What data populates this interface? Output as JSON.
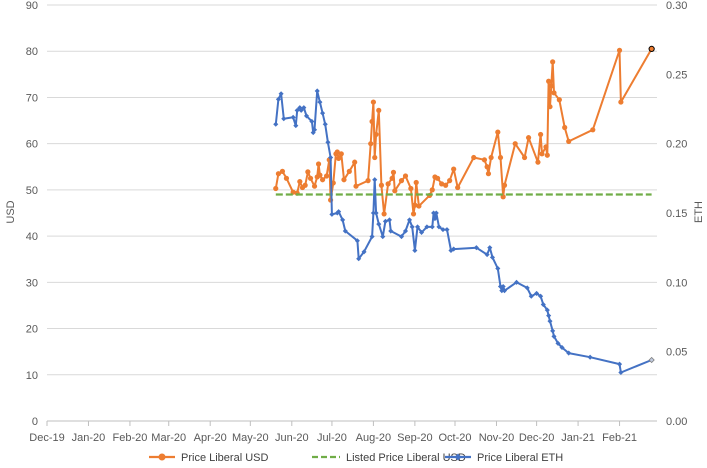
{
  "chart_data": {
    "type": "line",
    "title": "",
    "ylabel": "USD",
    "y2label": "ETH",
    "ylim": [
      0,
      90
    ],
    "y2lim": [
      0,
      0.3
    ],
    "yticks": [
      0,
      10,
      20,
      30,
      40,
      50,
      60,
      70,
      80,
      90
    ],
    "y2ticks": [
      0,
      0.05,
      0.1,
      0.15,
      0.2,
      0.25,
      0.3
    ],
    "y2tick_labels": [
      "0.00",
      "0.05",
      "0.10",
      "0.15",
      "0.20",
      "0.25",
      "0.30"
    ],
    "xlim": [
      "2019-12-01",
      "2021-03-01"
    ],
    "xticks": [
      "2019-12-01",
      "2020-01-01",
      "2020-02-01",
      "2020-03-01",
      "2020-04-01",
      "2020-05-01",
      "2020-06-01",
      "2020-07-01",
      "2020-08-01",
      "2020-09-01",
      "2020-10-01",
      "2020-11-01",
      "2020-12-01",
      "2021-01-01",
      "2021-02-01"
    ],
    "xtick_labels": [
      "Dec-19",
      "Jan-20",
      "Feb-20",
      "Mar-20",
      "Apr-20",
      "May-20",
      "Jun-20",
      "Jul-20",
      "Aug-20",
      "Sep-20",
      "Oct-20",
      "Nov-20",
      "Dec-20",
      "Jan-21",
      "Feb-21"
    ],
    "grid": true,
    "legend": "bottom",
    "series": [
      {
        "name": "Price Liberal USD",
        "axis": "left",
        "color": "#ed7d31",
        "marker": "circle",
        "points": [
          [
            "2020-05-20",
            50.3
          ],
          [
            "2020-05-22",
            53.5
          ],
          [
            "2020-05-25",
            54.0
          ],
          [
            "2020-05-28",
            52.5
          ],
          [
            "2020-06-02",
            49.5
          ],
          [
            "2020-06-05",
            49.3
          ],
          [
            "2020-06-07",
            51.8
          ],
          [
            "2020-06-09",
            50.5
          ],
          [
            "2020-06-11",
            51.0
          ],
          [
            "2020-06-13",
            53.9
          ],
          [
            "2020-06-15",
            52.5
          ],
          [
            "2020-06-18",
            50.8
          ],
          [
            "2020-06-20",
            52.8
          ],
          [
            "2020-06-21",
            55.6
          ],
          [
            "2020-06-22",
            53.2
          ],
          [
            "2020-06-24",
            52.2
          ],
          [
            "2020-06-27",
            53.0
          ],
          [
            "2020-06-29",
            56.5
          ],
          [
            "2020-06-30",
            47.8
          ],
          [
            "2020-07-02",
            51.5
          ],
          [
            "2020-07-04",
            57.8
          ],
          [
            "2020-07-05",
            58.2
          ],
          [
            "2020-07-06",
            56.8
          ],
          [
            "2020-07-08",
            57.8
          ],
          [
            "2020-07-10",
            52.2
          ],
          [
            "2020-07-14",
            54.0
          ],
          [
            "2020-07-18",
            56.0
          ],
          [
            "2020-07-19",
            50.8
          ],
          [
            "2020-07-28",
            52.0
          ],
          [
            "2020-07-30",
            60.0
          ],
          [
            "2020-07-31",
            64.8
          ],
          [
            "2020-08-01",
            69.0
          ],
          [
            "2020-08-02",
            57.0
          ],
          [
            "2020-08-03",
            62.0
          ],
          [
            "2020-08-05",
            67.2
          ],
          [
            "2020-08-07",
            51.0
          ],
          [
            "2020-08-09",
            44.8
          ],
          [
            "2020-08-12",
            51.3
          ],
          [
            "2020-08-15",
            52.5
          ],
          [
            "2020-08-16",
            53.8
          ],
          [
            "2020-08-17",
            49.8
          ],
          [
            "2020-08-22",
            52.0
          ],
          [
            "2020-08-25",
            53.0
          ],
          [
            "2020-08-29",
            50.3
          ],
          [
            "2020-08-31",
            44.8
          ],
          [
            "2020-09-01",
            46.7
          ],
          [
            "2020-09-02",
            51.6
          ],
          [
            "2020-09-04",
            46.5
          ],
          [
            "2020-09-12",
            48.8
          ],
          [
            "2020-09-14",
            50.0
          ],
          [
            "2020-09-16",
            52.8
          ],
          [
            "2020-09-18",
            52.5
          ],
          [
            "2020-09-21",
            51.3
          ],
          [
            "2020-09-24",
            51.0
          ],
          [
            "2020-09-27",
            52.0
          ],
          [
            "2020-09-30",
            54.5
          ],
          [
            "2020-10-03",
            50.5
          ],
          [
            "2020-10-15",
            57.0
          ],
          [
            "2020-10-23",
            56.5
          ],
          [
            "2020-10-25",
            55.0
          ],
          [
            "2020-10-26",
            53.5
          ],
          [
            "2020-10-28",
            57.0
          ],
          [
            "2020-11-02",
            62.5
          ],
          [
            "2020-11-04",
            57.0
          ],
          [
            "2020-11-06",
            48.5
          ],
          [
            "2020-11-07",
            51.0
          ],
          [
            "2020-11-15",
            60.0
          ],
          [
            "2020-11-22",
            57.0
          ],
          [
            "2020-11-25",
            61.3
          ],
          [
            "2020-12-02",
            56.0
          ],
          [
            "2020-12-04",
            62.0
          ],
          [
            "2020-12-05",
            57.8
          ],
          [
            "2020-12-08",
            59.3
          ],
          [
            "2020-12-09",
            57.5
          ],
          [
            "2020-12-10",
            73.5
          ],
          [
            "2020-12-11",
            68.0
          ],
          [
            "2020-12-12",
            72.5
          ],
          [
            "2020-12-13",
            77.7
          ],
          [
            "2020-12-14",
            71.0
          ],
          [
            "2020-12-18",
            69.5
          ],
          [
            "2020-12-22",
            63.5
          ],
          [
            "2020-12-25",
            60.5
          ],
          [
            "2021-01-12",
            63.0
          ],
          [
            "2021-02-01",
            80.2
          ],
          [
            "2021-02-02",
            69.0
          ],
          [
            "2021-02-25",
            80.5
          ]
        ]
      },
      {
        "name": "Listed Price Liberal USD",
        "axis": "left",
        "color": "#70ad47",
        "marker": "none",
        "dashed": true,
        "points": [
          [
            "2020-05-20",
            49.0
          ],
          [
            "2021-02-25",
            49.0
          ]
        ]
      },
      {
        "name": "Price Liberal ETH",
        "axis": "right",
        "color": "#4472c4",
        "marker": "diamond",
        "points": [
          [
            "2020-05-20",
            0.214
          ],
          [
            "2020-05-22",
            0.232
          ],
          [
            "2020-05-24",
            0.236
          ],
          [
            "2020-05-26",
            0.218
          ],
          [
            "2020-06-02",
            0.219
          ],
          [
            "2020-06-04",
            0.213
          ],
          [
            "2020-06-05",
            0.224
          ],
          [
            "2020-06-07",
            0.226
          ],
          [
            "2020-06-08",
            0.224
          ],
          [
            "2020-06-10",
            0.226
          ],
          [
            "2020-06-12",
            0.22
          ],
          [
            "2020-06-16",
            0.216
          ],
          [
            "2020-06-17",
            0.208
          ],
          [
            "2020-06-18",
            0.21
          ],
          [
            "2020-06-20",
            0.238
          ],
          [
            "2020-06-22",
            0.23
          ],
          [
            "2020-06-24",
            0.222
          ],
          [
            "2020-06-26",
            0.214
          ],
          [
            "2020-06-28",
            0.201
          ],
          [
            "2020-06-30",
            0.19
          ],
          [
            "2020-07-01",
            0.149
          ],
          [
            "2020-07-05",
            0.15
          ],
          [
            "2020-07-06",
            0.151
          ],
          [
            "2020-07-09",
            0.145
          ],
          [
            "2020-07-11",
            0.137
          ],
          [
            "2020-07-20",
            0.13
          ],
          [
            "2020-07-21",
            0.117
          ],
          [
            "2020-07-25",
            0.122
          ],
          [
            "2020-07-31",
            0.133
          ],
          [
            "2020-08-01",
            0.15
          ],
          [
            "2020-08-02",
            0.174
          ],
          [
            "2020-08-03",
            0.15
          ],
          [
            "2020-08-05",
            0.142
          ],
          [
            "2020-08-08",
            0.133
          ],
          [
            "2020-08-10",
            0.144
          ],
          [
            "2020-08-13",
            0.145
          ],
          [
            "2020-08-14",
            0.137
          ],
          [
            "2020-08-22",
            0.133
          ],
          [
            "2020-08-25",
            0.137
          ],
          [
            "2020-08-28",
            0.145
          ],
          [
            "2020-08-30",
            0.14
          ],
          [
            "2020-09-01",
            0.123
          ],
          [
            "2020-09-03",
            0.14
          ],
          [
            "2020-09-06",
            0.136
          ],
          [
            "2020-09-10",
            0.14
          ],
          [
            "2020-09-14",
            0.14
          ],
          [
            "2020-09-15",
            0.15
          ],
          [
            "2020-09-16",
            0.146
          ],
          [
            "2020-09-17",
            0.15
          ],
          [
            "2020-09-19",
            0.14
          ],
          [
            "2020-09-22",
            0.138
          ],
          [
            "2020-09-25",
            0.138
          ],
          [
            "2020-09-28",
            0.123
          ],
          [
            "2020-09-30",
            0.124
          ],
          [
            "2020-10-17",
            0.125
          ],
          [
            "2020-10-25",
            0.12
          ],
          [
            "2020-10-27",
            0.125
          ],
          [
            "2020-10-29",
            0.118
          ],
          [
            "2020-11-02",
            0.11
          ],
          [
            "2020-11-04",
            0.097
          ],
          [
            "2020-11-05",
            0.094
          ],
          [
            "2020-11-06",
            0.097
          ],
          [
            "2020-11-07",
            0.094
          ],
          [
            "2020-11-16",
            0.1
          ],
          [
            "2020-11-24",
            0.096
          ],
          [
            "2020-11-27",
            0.09
          ],
          [
            "2020-12-01",
            0.092
          ],
          [
            "2020-12-04",
            0.09
          ],
          [
            "2020-12-06",
            0.084
          ],
          [
            "2020-12-09",
            0.08
          ],
          [
            "2020-12-10",
            0.076
          ],
          [
            "2020-12-11",
            0.072
          ],
          [
            "2020-12-13",
            0.065
          ],
          [
            "2020-12-14",
            0.061
          ],
          [
            "2020-12-17",
            0.056
          ],
          [
            "2020-12-20",
            0.053
          ],
          [
            "2020-12-25",
            0.049
          ],
          [
            "2021-01-10",
            0.046
          ],
          [
            "2021-02-01",
            0.041
          ],
          [
            "2021-02-02",
            0.035
          ],
          [
            "2021-02-25",
            0.044
          ]
        ]
      }
    ]
  }
}
